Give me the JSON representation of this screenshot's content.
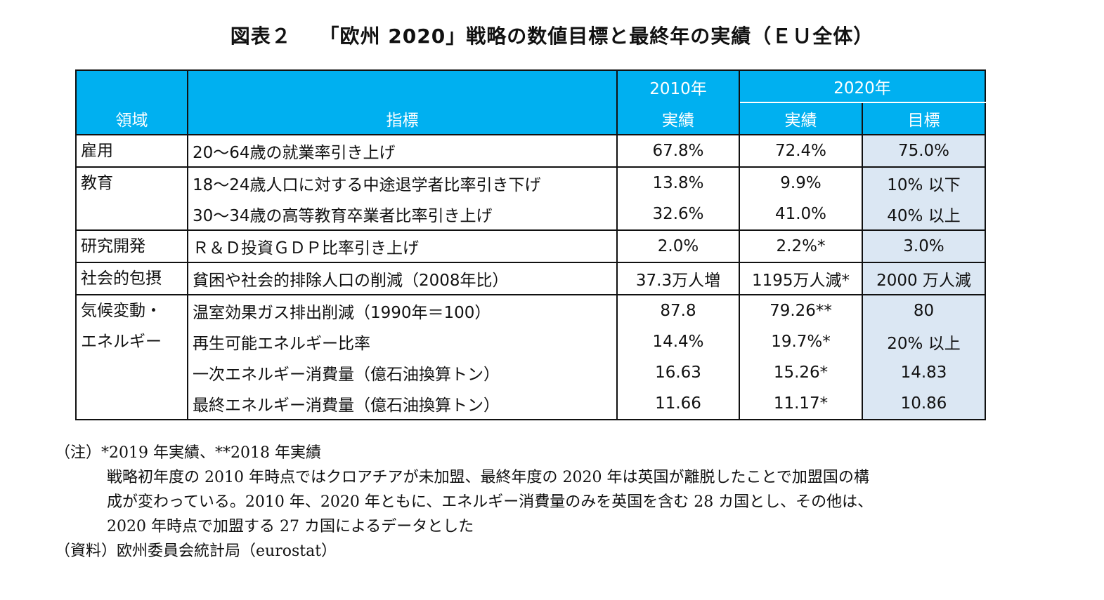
{
  "title": "図表２　 「欧州 2020」戦略の数値目標と最終年の実績（ＥＵ全体）",
  "header": {
    "area": "領域",
    "indicator": "指標",
    "y2010": "2010年",
    "y2020": "2020年",
    "actual2010": "実績",
    "actual2020": "実績",
    "target": "目標"
  },
  "rows": [
    {
      "area": "雇用",
      "indicator": "20～64歳の就業率引き上げ",
      "v2010": "67.8%",
      "v2020": "72.4%",
      "target": "75.0%"
    },
    {
      "area": "教育",
      "indicator": "18～24歳人口に対する中途退学者比率引き下げ",
      "v2010": "13.8%",
      "v2020": "9.9%",
      "target": "10% 以下"
    },
    {
      "area": "",
      "indicator": "30～34歳の高等教育卒業者比率引き上げ",
      "v2010": "32.6%",
      "v2020": "41.0%",
      "target": "40% 以上"
    },
    {
      "area": "研究開発",
      "indicator": "Ｒ＆Ｄ投資ＧＤＰ比率引き上げ",
      "v2010": "2.0%",
      "v2020": "2.2%*",
      "target": "3.0%"
    },
    {
      "area": "社会的包摂",
      "indicator": "貧困や社会的排除人口の削減（2008年比）",
      "v2010": "37.3万人増",
      "v2020": "1195万人減*",
      "target": "2000 万人減"
    },
    {
      "area": "気候変動・",
      "indicator": "温室効果ガス排出削減（1990年＝100）",
      "v2010": "87.8",
      "v2020": "79.26**",
      "target": "80"
    },
    {
      "area": "エネルギー",
      "indicator": "再生可能エネルギー比率",
      "v2010": "14.4%",
      "v2020": "19.7%*",
      "target": "20% 以上"
    },
    {
      "area": "",
      "indicator": "一次エネルギー消費量（億石油換算トン）",
      "v2010": "16.63",
      "v2020": "15.26*",
      "target": "14.83"
    },
    {
      "area": "",
      "indicator": "最終エネルギー消費量（億石油換算トン）",
      "v2010": "11.66",
      "v2020": "11.17*",
      "target": "10.86"
    }
  ],
  "notes": {
    "note_label": "（注）",
    "note_line1": "*2019 年実績、**2018 年実績",
    "note_line2": "戦略初年度の 2010 年時点ではクロアチアが未加盟、最終年度の 2020 年は英国が離脱したことで加盟国の構",
    "note_line3": "成が変わっている。2010 年、2020 年ともに、エネルギー消費量のみを英国を含む 28 カ国とし、その他は、",
    "note_line4": "2020 年時点で加盟する 27 カ国によるデータとした",
    "source_label": "（資料）",
    "source_text": "欧州委員会統計局（eurostat）"
  }
}
